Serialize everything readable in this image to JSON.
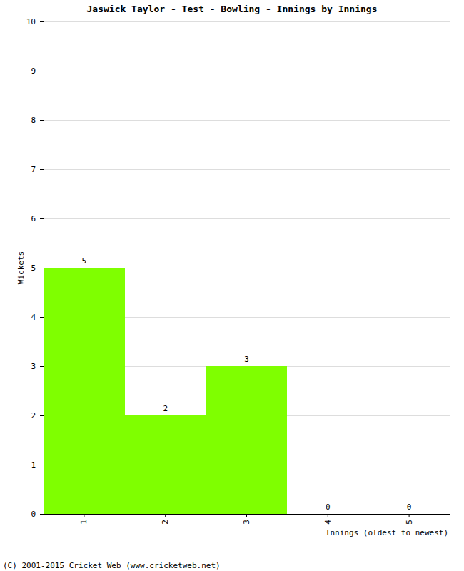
{
  "chart_data": {
    "type": "bar",
    "title": "Jaswick Taylor - Test - Bowling - Innings by Innings",
    "x_label": "Innings (oldest to newest)",
    "y_label": "Wickets",
    "annotations": [
      "(C) 2001-2015 Cricket Web (www.cricketweb.net)"
    ],
    "categories": [
      "1",
      "2",
      "3",
      "4",
      "5"
    ],
    "values": [
      5,
      2,
      3,
      0,
      0
    ],
    "color": "#7fff00",
    "ylim": [
      0,
      10
    ],
    "yticks": [
      0,
      1,
      2,
      3,
      4,
      5,
      6,
      7,
      8,
      9,
      10
    ],
    "grid": true,
    "data_labels": true
  }
}
